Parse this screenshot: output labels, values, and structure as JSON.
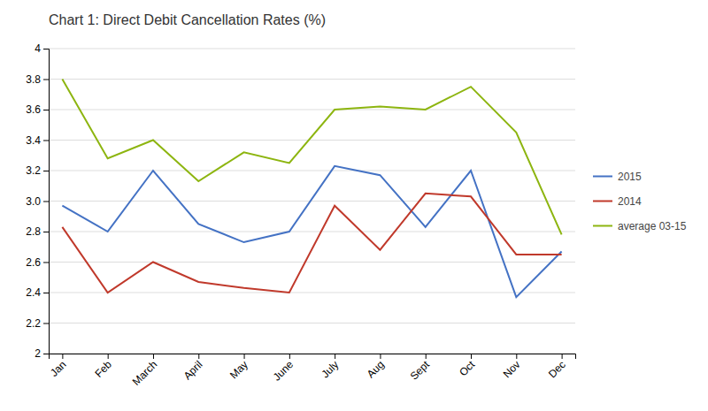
{
  "chart_data": {
    "type": "line",
    "title": "Chart 1: Direct Debit Cancellation Rates (%)",
    "categories": [
      "Jan",
      "Feb",
      "March",
      "April",
      "May",
      "June",
      "July",
      "Aug",
      "Sept",
      "Oct",
      "Nov",
      "Dec"
    ],
    "series": [
      {
        "name": "2015",
        "color": "#4472C4",
        "values": [
          2.97,
          2.8,
          3.2,
          2.85,
          2.73,
          2.8,
          3.23,
          3.17,
          2.83,
          3.2,
          2.37,
          2.67
        ]
      },
      {
        "name": "2014",
        "color": "#C0392B",
        "values": [
          2.83,
          2.4,
          2.6,
          2.47,
          2.43,
          2.4,
          2.97,
          2.68,
          3.05,
          3.03,
          2.65,
          2.65
        ]
      },
      {
        "name": "average 03-15",
        "color": "#8DB510",
        "values": [
          3.8,
          3.28,
          3.4,
          3.13,
          3.32,
          3.25,
          3.6,
          3.62,
          3.6,
          3.75,
          3.45,
          2.78
        ]
      }
    ],
    "ylim": [
      2.0,
      4.0
    ],
    "yticks": [
      2,
      2.2,
      2.4,
      2.6,
      2.8,
      {
        "value": 3,
        "label": "3.0"
      },
      3.2,
      3.4,
      3.6,
      3.8,
      4
    ],
    "grid": true,
    "legend": "right"
  }
}
